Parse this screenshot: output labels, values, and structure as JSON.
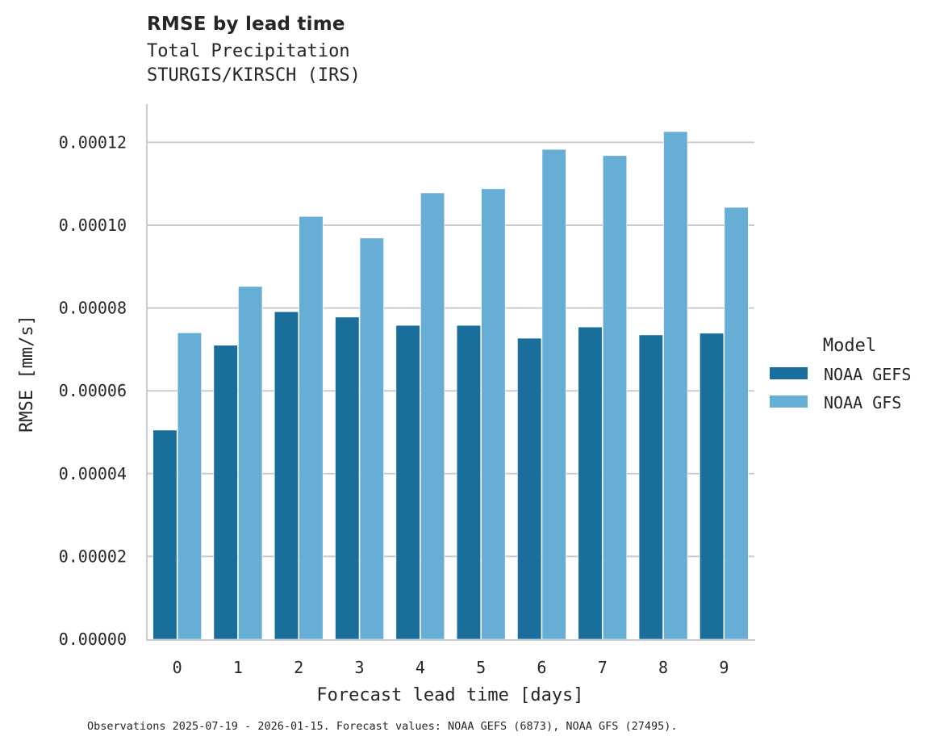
{
  "header": {
    "title": "RMSE by lead time",
    "subtitle_line1": "Total Precipitation",
    "subtitle_line2": "STURGIS/KIRSCH (IRS)"
  },
  "caption": "Observations 2025-07-19 - 2026-01-15. Forecast values: NOAA GEFS (6873), NOAA GFS (27495).",
  "colors": {
    "NOAA GEFS": "#1a6e9c",
    "NOAA GFS": "#67aed6",
    "grid": "#cccccc",
    "spine": "#cccccc"
  },
  "chart_data": {
    "type": "bar",
    "title": "RMSE by lead time",
    "subtitle": "Total Precipitation / STURGIS/KIRSCH (IRS)",
    "xlabel": "Forecast lead time [days]",
    "ylabel": "RMSE [mm/s]",
    "categories": [
      "0",
      "1",
      "2",
      "3",
      "4",
      "5",
      "6",
      "7",
      "8",
      "9"
    ],
    "series": [
      {
        "name": "NOAA GEFS",
        "values": [
          5.05e-05,
          7.1e-05,
          7.91e-05,
          7.78e-05,
          7.58e-05,
          7.58e-05,
          7.27e-05,
          7.54e-05,
          7.35e-05,
          7.39e-05
        ]
      },
      {
        "name": "NOAA GFS",
        "values": [
          7.4e-05,
          8.52e-05,
          0.0001021,
          9.69e-05,
          0.0001078,
          0.0001088,
          0.0001183,
          0.0001168,
          0.0001226,
          0.0001043
        ]
      }
    ],
    "yticks": [
      "0.00000",
      "0.00002",
      "0.00004",
      "0.00006",
      "0.00008",
      "0.00010",
      "0.00012"
    ],
    "ytick_values": [
      0,
      2e-05,
      4e-05,
      6e-05,
      8e-05,
      0.0001,
      0.00012
    ],
    "ylim": [
      0,
      0.000129
    ],
    "grid": "horizontal",
    "legend": {
      "title": "Model",
      "position": "right",
      "entries": [
        "NOAA GEFS",
        "NOAA GFS"
      ]
    }
  }
}
